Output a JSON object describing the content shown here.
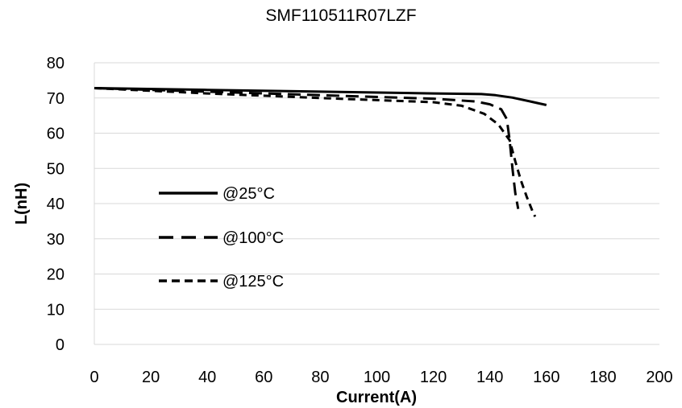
{
  "chart_data": {
    "type": "line",
    "title": "SMF110511R07LZF",
    "xlabel": "Current(A)",
    "ylabel": "L(nH)",
    "xlim": [
      0,
      200
    ],
    "ylim": [
      0,
      80
    ],
    "x_ticks": [
      0,
      20,
      40,
      60,
      80,
      100,
      120,
      140,
      160,
      180,
      200
    ],
    "y_ticks": [
      0,
      10,
      20,
      30,
      40,
      50,
      60,
      70,
      80
    ],
    "grid": "horizontal",
    "legend_position": "left-center",
    "series": [
      {
        "name": "@25°C",
        "style": "solid",
        "color": "#000000",
        "x": [
          0,
          40,
          80,
          120,
          137,
          142,
          148,
          155,
          160
        ],
        "y": [
          72.8,
          72.3,
          71.8,
          71.3,
          71.1,
          70.8,
          70.1,
          68.9,
          68.0
        ]
      },
      {
        "name": "@100°C",
        "style": "long-dash",
        "color": "#000000",
        "x": [
          0,
          40,
          80,
          120,
          135,
          140,
          144,
          146,
          147,
          148,
          149,
          150
        ],
        "y": [
          72.8,
          71.8,
          70.8,
          69.8,
          69.0,
          68.2,
          66.8,
          64.0,
          58.0,
          50.0,
          43.0,
          38.5
        ]
      },
      {
        "name": "@125°C",
        "style": "short-dash",
        "color": "#000000",
        "x": [
          0,
          40,
          80,
          120,
          130,
          138,
          143,
          147,
          149,
          151,
          153,
          155,
          156
        ],
        "y": [
          72.8,
          71.3,
          70.0,
          68.8,
          67.8,
          65.5,
          62.5,
          58.0,
          52.0,
          46.5,
          42.0,
          38.0,
          36.3
        ]
      }
    ]
  }
}
